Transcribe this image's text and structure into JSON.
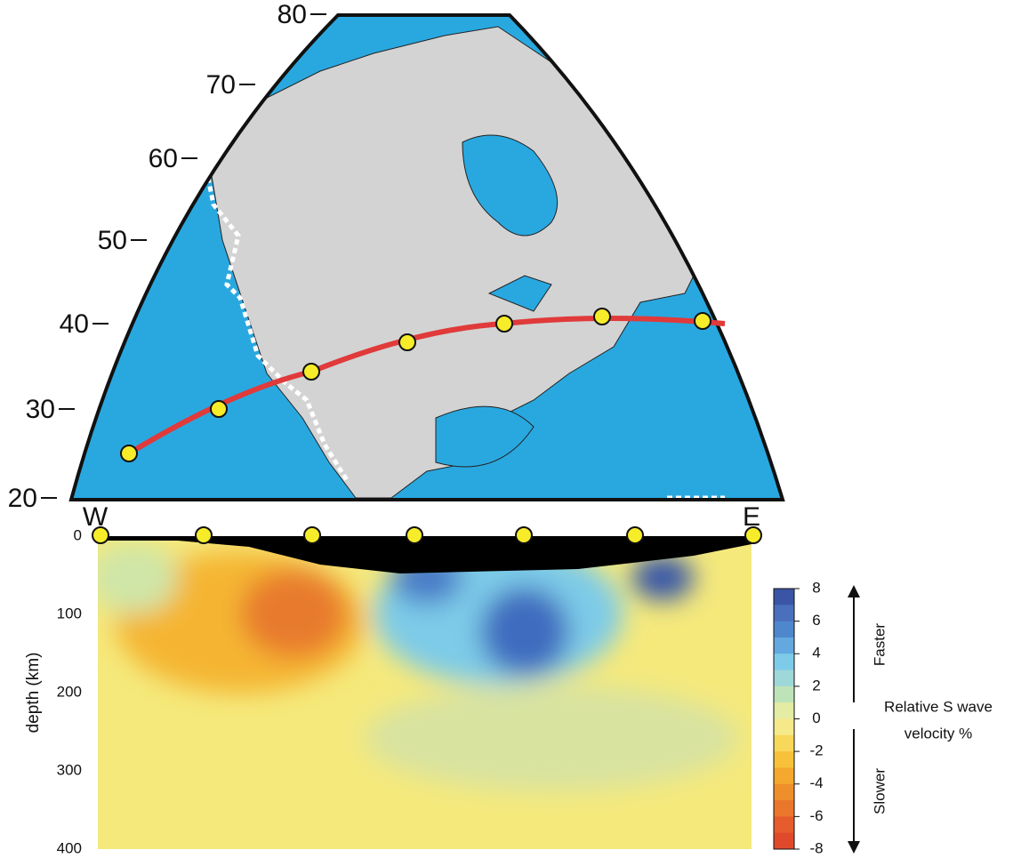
{
  "map": {
    "latitude_labels": [
      80,
      70,
      60,
      50,
      40,
      30,
      20
    ]
  },
  "section": {
    "west_label": "W",
    "east_label": "E",
    "y_label": "depth (km)",
    "depth_ticks": [
      0,
      100,
      200,
      300,
      400
    ]
  },
  "colorbar": {
    "ticks": [
      8,
      6,
      4,
      2,
      0,
      -2,
      -4,
      -6,
      -8
    ],
    "faster_label": "Faster",
    "slower_label": "Slower",
    "title_lines": [
      "Relative S wave",
      "velocity %"
    ]
  }
}
